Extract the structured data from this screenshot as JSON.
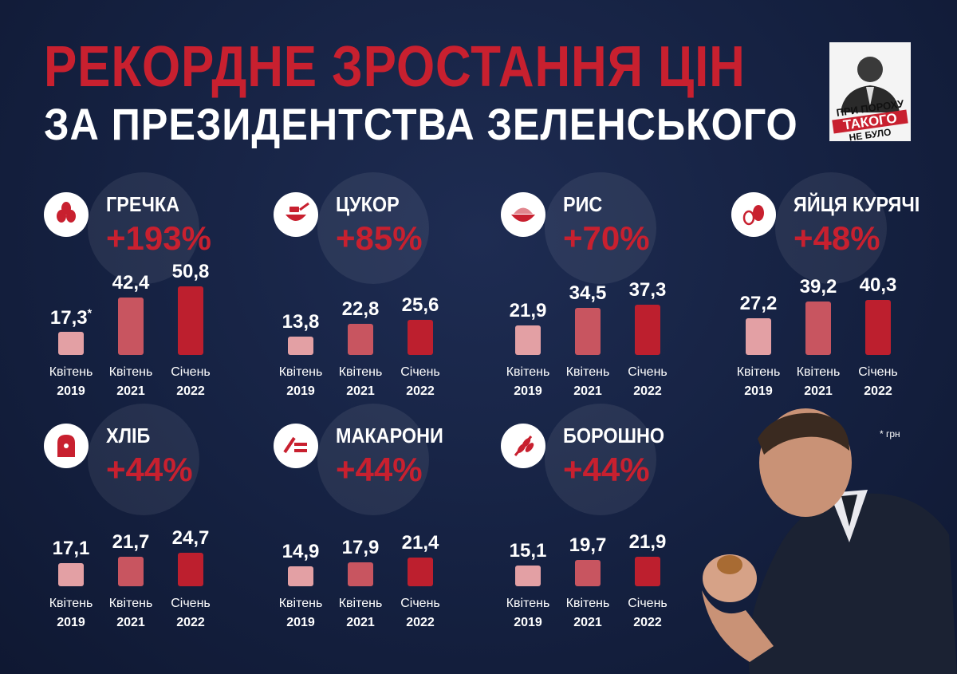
{
  "title": {
    "line1": "РЕКОРДНЕ ЗРОСТАННЯ ЦІН",
    "line2": "ЗА ПРЕЗИДЕНТСТВА ЗЕЛЕНСЬКОГО"
  },
  "logo": {
    "line1": "ПРИ ПОРОХУ",
    "line2": "ТАКОГО",
    "line3": "НЕ БУЛО"
  },
  "footnote": "* грн",
  "colors": {
    "background": "#152141",
    "accent_red": "#c8202f",
    "bar_2019": "#e3a0a4",
    "bar_2021": "#c85560",
    "bar_2022": "#bd1f2e"
  },
  "chart_data": [
    {
      "type": "bar",
      "title": "ГРЕЧКА",
      "subtitle": "+193%",
      "icon": "grain-icon",
      "categories": [
        "Квітень 2019",
        "Квітень 2021",
        "Січень 2022"
      ],
      "values": [
        17.3,
        42.4,
        50.8
      ],
      "value_labels": [
        "17,3",
        "42,4",
        "50,8"
      ],
      "first_marker": "*"
    },
    {
      "type": "bar",
      "title": "ЦУКОР",
      "subtitle": "+85%",
      "icon": "sugar-bowl-icon",
      "categories": [
        "Квітень 2019",
        "Квітень 2021",
        "Січень 2022"
      ],
      "values": [
        13.8,
        22.8,
        25.6
      ],
      "value_labels": [
        "13,8",
        "22,8",
        "25,6"
      ]
    },
    {
      "type": "bar",
      "title": "РИС",
      "subtitle": "+70%",
      "icon": "rice-bowl-icon",
      "categories": [
        "Квітень 2019",
        "Квітень 2021",
        "Січень 2022"
      ],
      "values": [
        21.9,
        34.5,
        37.3
      ],
      "value_labels": [
        "21,9",
        "34,5",
        "37,3"
      ]
    },
    {
      "type": "bar",
      "title": "ЯЙЦЯ КУРЯЧІ",
      "subtitle": "+48%",
      "icon": "eggs-icon",
      "categories": [
        "Квітень 2019",
        "Квітень 2021",
        "Січень 2022"
      ],
      "values": [
        27.2,
        39.2,
        40.3
      ],
      "value_labels": [
        "27,2",
        "39,2",
        "40,3"
      ]
    },
    {
      "type": "bar",
      "title": "ХЛІБ",
      "subtitle": "+44%",
      "icon": "bread-icon",
      "categories": [
        "Квітень 2019",
        "Квітень 2021",
        "Січень 2022"
      ],
      "values": [
        17.1,
        21.7,
        24.7
      ],
      "value_labels": [
        "17,1",
        "21,7",
        "24,7"
      ]
    },
    {
      "type": "bar",
      "title": "МАКАРОНИ",
      "subtitle": "+44%",
      "icon": "pasta-icon",
      "categories": [
        "Квітень 2019",
        "Квітень 2021",
        "Січень 2022"
      ],
      "values": [
        14.9,
        17.9,
        21.4
      ],
      "value_labels": [
        "14,9",
        "17,9",
        "21,4"
      ]
    },
    {
      "type": "bar",
      "title": "БОРОШНО",
      "subtitle": "+44%",
      "icon": "wheat-icon",
      "categories": [
        "Квітень 2019",
        "Квітень 2021",
        "Січень 2022"
      ],
      "values": [
        15.1,
        19.7,
        21.9
      ],
      "value_labels": [
        "15,1",
        "19,7",
        "21,9"
      ]
    }
  ]
}
